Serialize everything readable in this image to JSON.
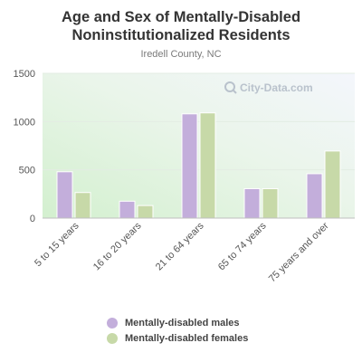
{
  "watermark": "City-Data.com",
  "chart_data": {
    "type": "bar",
    "title_line1": "Age and Sex of Mentally-Disabled",
    "title_line2": "Noninstitutionalized Residents",
    "subtitle": "Iredell County, NC",
    "categories": [
      "5 to 15 years",
      "16 to 20 years",
      "21 to 64 years",
      "65 to 74 years",
      "75 years and over"
    ],
    "series": [
      {
        "name": "Mentally-disabled males",
        "color": "#c3aedb",
        "values": [
          480,
          175,
          1080,
          305,
          460
        ]
      },
      {
        "name": "Mentally-disabled females",
        "color": "#c7d9a8",
        "values": [
          265,
          130,
          1090,
          305,
          695
        ]
      }
    ],
    "yticks": [
      0,
      500,
      1000,
      1500
    ],
    "ylim": [
      0,
      1500
    ],
    "grid": true,
    "legend_position": "bottom"
  }
}
